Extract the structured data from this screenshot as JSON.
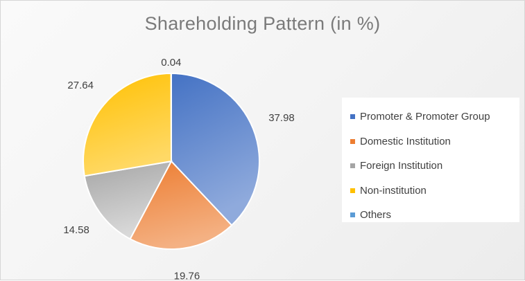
{
  "chart_data": {
    "type": "pie",
    "title": "Shareholding Pattern (in %)",
    "legend_position": "right",
    "slices": [
      {
        "name": "Promoter & Promoter Group",
        "value": 37.98,
        "color": "#4472C4",
        "color_light": "#8FAADC"
      },
      {
        "name": "Domestic Institution",
        "value": 19.76,
        "color": "#ED7D31",
        "color_light": "#F4B183"
      },
      {
        "name": "Foreign Institution",
        "value": 14.58,
        "color": "#A5A5A5",
        "color_light": "#D9D9D9"
      },
      {
        "name": "Non-institution",
        "value": 27.64,
        "color": "#FFC000",
        "color_light": "#FFD966"
      },
      {
        "name": "Others",
        "value": 0.04,
        "color": "#5B9BD5",
        "color_light": "#9DC3E6"
      }
    ]
  }
}
